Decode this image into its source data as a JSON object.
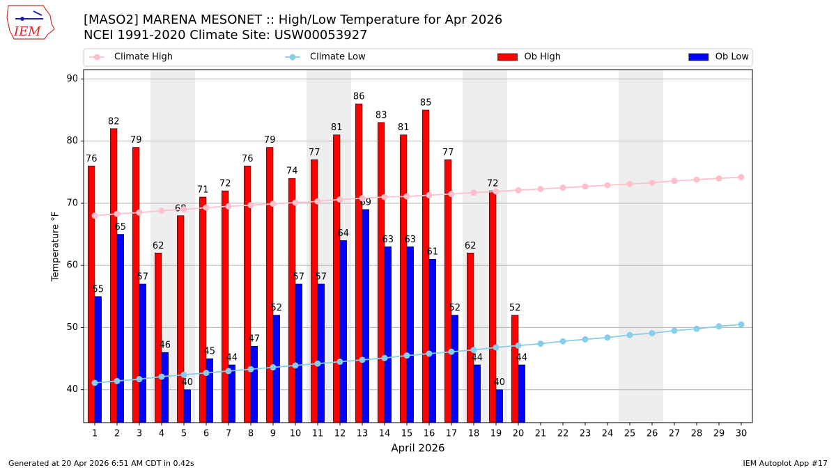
{
  "logo_text": "IEM",
  "footer": {
    "left": "Generated at 20 Apr 2026 6:51 AM CDT in 0.42s",
    "right": "IEM Autoplot App #17"
  },
  "chart_data": {
    "type": "bar",
    "title": "[MASO2] MARENA MESONET :: High/Low Temperature for Apr 2026",
    "subtitle": "NCEI 1991-2020 Climate Site: USW00053927",
    "x_label": "April 2026",
    "y_label": "Temperature °F",
    "x": [
      1,
      2,
      3,
      4,
      5,
      6,
      7,
      8,
      9,
      10,
      11,
      12,
      13,
      14,
      15,
      16,
      17,
      18,
      19,
      20,
      21,
      22,
      23,
      24,
      25,
      26,
      27,
      28,
      29,
      30
    ],
    "xlim": [
      0.5,
      30.5
    ],
    "ylim": [
      34.7,
      91.5
    ],
    "yticks": [
      40,
      50,
      60,
      70,
      80,
      90
    ],
    "grid": true,
    "series": [
      {
        "name": "Climate High",
        "type": "line",
        "color": "#ffc0cb",
        "values": [
          68.0,
          68.3,
          68.5,
          68.8,
          69.0,
          69.3,
          69.5,
          69.7,
          69.9,
          70.1,
          70.3,
          70.6,
          70.8,
          71.0,
          71.1,
          71.3,
          71.5,
          71.7,
          71.9,
          72.1,
          72.3,
          72.5,
          72.7,
          72.9,
          73.1,
          73.3,
          73.6,
          73.8,
          74.0,
          74.2
        ]
      },
      {
        "name": "Climate Low",
        "type": "line",
        "color": "#87ceeb",
        "values": [
          41.1,
          41.4,
          41.7,
          42.1,
          42.4,
          42.7,
          43.0,
          43.3,
          43.6,
          43.9,
          44.2,
          44.5,
          44.8,
          45.1,
          45.5,
          45.8,
          46.1,
          46.4,
          46.8,
          47.1,
          47.4,
          47.8,
          48.1,
          48.4,
          48.8,
          49.1,
          49.5,
          49.8,
          50.2,
          50.5
        ]
      },
      {
        "name": "Ob High",
        "type": "bar",
        "color": "#ff0000",
        "values": [
          76,
          82,
          79,
          62,
          68,
          71,
          72,
          76,
          79,
          74,
          77,
          81,
          86,
          83,
          81,
          85,
          77,
          62,
          72,
          52,
          null,
          null,
          null,
          null,
          null,
          null,
          null,
          null,
          null,
          null
        ]
      },
      {
        "name": "Ob Low",
        "type": "bar",
        "color": "#0000ff",
        "values": [
          55,
          65,
          57,
          46,
          40,
          45,
          44,
          47,
          52,
          57,
          57,
          64,
          69,
          63,
          63,
          61,
          52,
          44,
          40,
          44,
          null,
          null,
          null,
          null,
          null,
          null,
          null,
          null,
          null,
          null
        ]
      }
    ]
  }
}
